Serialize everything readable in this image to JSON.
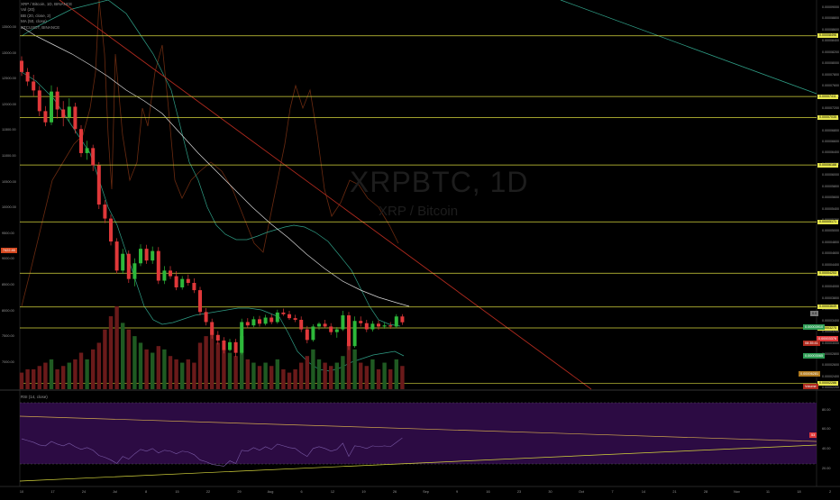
{
  "legend": {
    "symbol": "XRP / Bitcoin, 1D, BINANCE",
    "vol": "Vol (20)",
    "bb": "BB (20, close, 2)",
    "ma": "MA (50, close)",
    "btc": "BTCUSDT, BINANCE"
  },
  "watermark": {
    "symbol": "XRPBTC, 1D",
    "name": "XRP / Bitcoin"
  },
  "left_axis": [
    "13500.00",
    "13000.00",
    "12500.00",
    "12000.00",
    "11500.00",
    "11000.00",
    "10500.00",
    "10000.00",
    "9500.00",
    "9000.00",
    "8500.00",
    "8000.00",
    "7500.00",
    "7000.00"
  ],
  "right_axis": [
    "0.00009000",
    "0.00008800",
    "0.00008600",
    "0.00008400",
    "0.00008200",
    "0.00008000",
    "0.00007800",
    "0.00007600",
    "0.00007400",
    "0.00007200",
    "0.00007000",
    "0.00006800",
    "0.00006600",
    "0.00006400",
    "0.00006200",
    "0.00006000",
    "0.00005800",
    "0.00005600",
    "0.00005400",
    "0.00005200",
    "0.00005000",
    "0.00004800",
    "0.00004600",
    "0.00004400",
    "0.00004200",
    "0.00004000",
    "0.00003800",
    "0.00003600",
    "0.00003400",
    "0.00003200",
    "0.00003000",
    "0.00002800",
    "0.00002600",
    "0.00002400",
    "0.00002200"
  ],
  "level_tags": [
    "0.00008496",
    "0.00007411",
    "0.00007035",
    "0.00006188",
    "0.00005171",
    "0.00004253",
    "0.00003649",
    "0.00003275",
    "0.00002286"
  ],
  "price_tags": {
    "btc_price": "7422.46",
    "bb_upper": "0.00003910",
    "last": "0.00003376",
    "countdown": "08:35:41",
    "bb_lower": "0.00003065",
    "ma": "0.00006281",
    "volume": "Volume",
    "btc_left": "7422.46",
    "mid_tag": "0.0"
  },
  "x_axis": [
    "10",
    "17",
    "24",
    "Jul",
    "8",
    "15",
    "22",
    "29",
    "Aug",
    "6",
    "12",
    "19",
    "26",
    "Sep",
    "9",
    "16",
    "23",
    "30",
    "Oct",
    "7",
    "14",
    "21",
    "28",
    "Nov",
    "11",
    "18",
    "2"
  ],
  "rsi": {
    "title": "RSI (14, close)",
    "ticks": [
      "80.00",
      "60.00",
      "40.00",
      "20.00"
    ],
    "value_tag": "53"
  },
  "colors": {
    "up": "#2db83a",
    "down": "#e0383a",
    "level": "#d6d63c",
    "trend": "#b02a1e",
    "bb": "#2f9e86",
    "ma": "#d8d8d8",
    "rsi_bg": "#3b0f5a"
  },
  "chart_data": {
    "type": "candlestick",
    "title": "XRP / Bitcoin, 1D, BINANCE",
    "ylabel": "",
    "xlabel": "",
    "y_range": [
      2.18e-05,
      9.04e-05
    ],
    "y_label_step": 2e-06,
    "candles": [
      [
        8.05e-05,
        8.13e-05,
        7.78e-05,
        7.85e-05
      ],
      [
        7.85e-05,
        7.92e-05,
        7.6e-05,
        7.68e-05
      ],
      [
        7.68e-05,
        7.8e-05,
        7.42e-05,
        7.52e-05
      ],
      [
        7.52e-05,
        7.6e-05,
        7.06e-05,
        7.15e-05
      ],
      [
        7.15e-05,
        7.24e-05,
        6.88e-05,
        6.95e-05
      ],
      [
        6.95e-05,
        7.61e-05,
        6.9e-05,
        7.5e-05
      ],
      [
        7.5e-05,
        7.58e-05,
        7.02e-05,
        7.18e-05
      ],
      [
        7.18e-05,
        7.33e-05,
        6.88e-05,
        7.04e-05
      ],
      [
        7.04e-05,
        7.38e-05,
        6.96e-05,
        7.23e-05
      ],
      [
        7.23e-05,
        7.3e-05,
        6.75e-05,
        6.83e-05
      ],
      [
        6.83e-05,
        6.9e-05,
        6.33e-05,
        6.4e-05
      ],
      [
        6.4e-05,
        6.62e-05,
        6.28e-05,
        6.49e-05
      ],
      [
        6.49e-05,
        6.55e-05,
        6.08e-05,
        6.18e-05
      ],
      [
        6.18e-05,
        6.24e-05,
        5.4e-05,
        5.48e-05
      ],
      [
        5.48e-05,
        5.56e-05,
        5.15e-05,
        5.23e-05
      ],
      [
        5.23e-05,
        5.3e-05,
        4.75e-05,
        4.82e-05
      ],
      [
        4.82e-05,
        4.88e-05,
        4.25e-05,
        4.3e-05
      ],
      [
        4.3e-05,
        4.69e-05,
        4.24e-05,
        4.6e-05
      ],
      [
        4.6e-05,
        4.66e-05,
        4.08e-05,
        4.15e-05
      ],
      [
        4.15e-05,
        4.52e-05,
        4.02e-05,
        4.43e-05
      ],
      [
        4.43e-05,
        4.77e-05,
        4.38e-05,
        4.69e-05
      ],
      [
        4.69e-05,
        4.76e-05,
        4.42e-05,
        4.48e-05
      ],
      [
        4.48e-05,
        4.73e-05,
        4.42e-05,
        4.65e-05
      ],
      [
        4.65e-05,
        4.72e-05,
        4.06e-05,
        4.12e-05
      ],
      [
        4.12e-05,
        4.38e-05,
        4.06e-05,
        4.3e-05
      ],
      [
        4.3e-05,
        4.38e-05,
        4.15e-05,
        4.2e-05
      ],
      [
        4.2e-05,
        4.29e-05,
        3.95e-05,
        4e-05
      ],
      [
        4e-05,
        4.2e-05,
        3.96e-05,
        4.15e-05
      ],
      [
        4.15e-05,
        4.23e-05,
        4.03e-05,
        4.08e-05
      ],
      [
        4.08e-05,
        4.16e-05,
        3.9e-05,
        3.95e-05
      ],
      [
        3.95e-05,
        4.01e-05,
        3.5e-05,
        3.56e-05
      ],
      [
        3.56e-05,
        3.63e-05,
        3.32e-05,
        3.38e-05
      ],
      [
        3.38e-05,
        3.44e-05,
        3.08e-05,
        3.15e-05
      ],
      [
        3.15e-05,
        3.22e-05,
        2.98e-05,
        3.05e-05
      ],
      [
        3.05e-05,
        3.11e-05,
        2.82e-05,
        2.88e-05
      ],
      [
        2.88e-05,
        3.08e-05,
        2.85e-05,
        3.02e-05
      ],
      [
        3.02e-05,
        3.08e-05,
        2.76e-05,
        2.83e-05
      ],
      [
        2.83e-05,
        3.44e-05,
        2.8e-05,
        3.38e-05
      ],
      [
        3.38e-05,
        3.45e-05,
        3.27e-05,
        3.32e-05
      ],
      [
        3.32e-05,
        3.48e-05,
        3.29e-05,
        3.43e-05
      ],
      [
        3.43e-05,
        3.49e-05,
        3.3e-05,
        3.35e-05
      ],
      [
        3.35e-05,
        3.51e-05,
        3.32e-05,
        3.46e-05
      ],
      [
        3.46e-05,
        3.52e-05,
        3.34e-05,
        3.38e-05
      ],
      [
        3.38e-05,
        3.6e-05,
        3.35e-05,
        3.55e-05
      ],
      [
        3.55e-05,
        3.62e-05,
        3.49e-05,
        3.52e-05
      ],
      [
        3.52e-05,
        3.58e-05,
        3.42e-05,
        3.45e-05
      ],
      [
        3.45e-05,
        3.51e-05,
        3.38e-05,
        3.42e-05
      ],
      [
        3.42e-05,
        3.48e-05,
        3.2e-05,
        3.25e-05
      ],
      [
        3.25e-05,
        3.31e-05,
        3e-05,
        3.06e-05
      ],
      [
        3.06e-05,
        3.34e-05,
        3.03e-05,
        3.3e-05
      ],
      [
        3.3e-05,
        3.38e-05,
        3.24e-05,
        3.35e-05
      ],
      [
        3.35e-05,
        3.42e-05,
        3.28e-05,
        3.3e-05
      ],
      [
        3.3e-05,
        3.36e-05,
        3.15e-05,
        3.2e-05
      ],
      [
        3.2e-05,
        3.29e-05,
        3.1e-05,
        3.25e-05
      ],
      [
        3.25e-05,
        3.58e-05,
        3.22e-05,
        3.5e-05
      ],
      [
        3.5e-05,
        3.56e-05,
        2.88e-05,
        2.95e-05
      ],
      [
        2.95e-05,
        3.48e-05,
        2.92e-05,
        3.4e-05
      ],
      [
        3.4e-05,
        3.48e-05,
        3.3e-05,
        3.36e-05
      ],
      [
        3.36e-05,
        3.42e-05,
        3.2e-05,
        3.25e-05
      ],
      [
        3.25e-05,
        3.4e-05,
        3.21e-05,
        3.35e-05
      ],
      [
        3.35e-05,
        3.41e-05,
        3.24e-05,
        3.3e-05
      ],
      [
        3.3e-05,
        3.37e-05,
        3.26e-05,
        3.32e-05
      ],
      [
        3.32e-05,
        3.38e-05,
        3.26e-05,
        3.3e-05
      ],
      [
        3.3e-05,
        3.52e-05,
        3.27e-05,
        3.48e-05
      ],
      [
        3.48e-05,
        3.52e-05,
        3.33e-05,
        3.376e-05
      ]
    ],
    "volume_up": [
      false,
      false,
      false,
      false,
      false,
      true,
      false,
      false,
      true,
      false,
      false,
      true,
      false,
      false,
      false,
      false,
      false,
      true,
      false,
      true,
      true,
      false,
      true,
      false,
      true,
      false,
      false,
      true,
      false,
      false,
      false,
      false,
      false,
      false,
      false,
      true,
      false,
      true,
      false,
      true,
      false,
      true,
      false,
      true,
      false,
      false,
      false,
      false,
      false,
      true,
      true,
      false,
      false,
      true,
      true,
      false,
      true,
      false,
      false,
      true,
      false,
      true,
      false,
      true,
      false
    ],
    "volume": [
      5,
      6,
      6,
      7,
      8,
      9,
      6,
      7,
      8,
      9,
      11,
      9,
      12,
      14,
      18,
      22,
      25,
      20,
      18,
      16,
      14,
      12,
      11,
      13,
      12,
      10,
      9,
      8,
      9,
      8,
      14,
      16,
      18,
      14,
      12,
      11,
      10,
      16,
      9,
      8,
      7,
      8,
      7,
      9,
      6,
      5,
      6,
      8,
      10,
      12,
      9,
      8,
      7,
      8,
      10,
      14,
      12,
      8,
      7,
      9,
      6,
      8,
      6,
      9,
      7
    ],
    "horizontal_levels": [
      8.496e-05,
      7.411e-05,
      7.035e-05,
      6.188e-05,
      5.171e-05,
      4.253e-05,
      3.649e-05,
      3.275e-05,
      2.286e-05
    ],
    "rsi": {
      "range": [
        0,
        100
      ],
      "bands": [
        30,
        70
      ],
      "values": [
        52,
        50,
        48,
        45,
        44,
        49,
        46,
        44,
        47,
        43,
        40,
        42,
        39,
        33,
        31,
        28,
        24,
        32,
        29,
        35,
        40,
        38,
        41,
        36,
        39,
        38,
        35,
        38,
        37,
        34,
        28,
        26,
        23,
        22,
        21,
        27,
        24,
        39,
        38,
        42,
        39,
        43,
        40,
        46,
        44,
        42,
        41,
        36,
        32,
        41,
        43,
        41,
        38,
        40,
        47,
        32,
        44,
        43,
        41,
        44,
        43,
        44,
        43,
        48,
        53
      ]
    }
  }
}
